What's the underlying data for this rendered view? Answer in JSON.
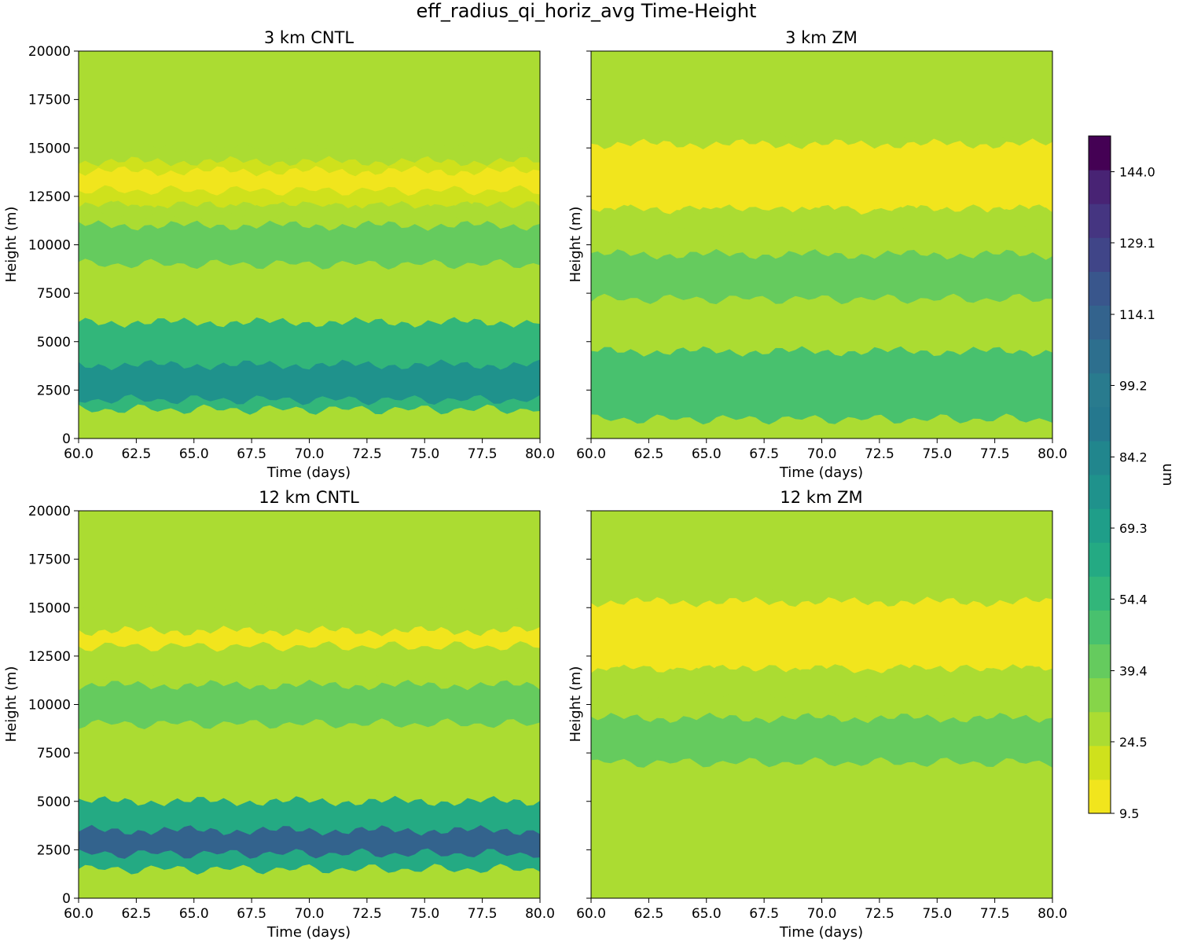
{
  "figure": {
    "title": "eff_radius_qi_horiz_avg Time-Height"
  },
  "colorbar": {
    "label": "um",
    "ticks": [
      "9.5",
      "24.5",
      "39.4",
      "54.4",
      "69.3",
      "84.2",
      "99.2",
      "114.1",
      "129.1",
      "144.0"
    ],
    "range": [
      9.5,
      151.5
    ],
    "levels": 19,
    "colors": [
      "#f1e51d",
      "#cfe11c",
      "#abdc32",
      "#86d549",
      "#65cb5e",
      "#48c16e",
      "#32b67a",
      "#24aa83",
      "#1f9e89",
      "#1f928c",
      "#21868d",
      "#25788e",
      "#297b8e",
      "#2d6f8e",
      "#33638d",
      "#39568c",
      "#404588",
      "#453581",
      "#482374",
      "#440154"
    ]
  },
  "chart_data": [
    {
      "type": "heatmap",
      "title": "3 km CNTL",
      "xlabel": "Time (days)",
      "ylabel": "Height (m)",
      "xlim": [
        60,
        80
      ],
      "ylim": [
        0,
        20000
      ],
      "xticks": [
        "60.0",
        "62.5",
        "65.0",
        "67.5",
        "70.0",
        "72.5",
        "75.0",
        "77.5",
        "80.0"
      ],
      "yticks": [
        "0",
        "2500",
        "5000",
        "7500",
        "10000",
        "12500",
        "15000",
        "17500",
        "20000"
      ],
      "background_um": 30,
      "bands": [
        {
          "y": [
            14300,
            15000
          ],
          "um": 26
        },
        {
          "y": [
            12000,
            14300
          ],
          "um": 22
        },
        {
          "y": [
            12800,
            13800
          ],
          "um": 15
        },
        {
          "y": [
            11500,
            12000
          ],
          "um": 26
        },
        {
          "y": [
            9000,
            11000
          ],
          "um": 40
        },
        {
          "y": [
            1500,
            6000
          ],
          "um": 55
        },
        {
          "y": [
            2000,
            3800
          ],
          "um": 75
        }
      ]
    },
    {
      "type": "heatmap",
      "title": "3 km ZM",
      "xlabel": "Time (days)",
      "ylabel": "Height (m)",
      "xlim": [
        60,
        80
      ],
      "ylim": [
        0,
        20000
      ],
      "xticks": [
        "60.0",
        "62.5",
        "65.0",
        "67.5",
        "70.0",
        "72.5",
        "75.0",
        "77.5",
        "80.0"
      ],
      "yticks": [
        "0",
        "2500",
        "5000",
        "7500",
        "10000",
        "12500",
        "15000",
        "17500",
        "20000"
      ],
      "background_um": 30,
      "bands": [
        {
          "y": [
            14800,
            15700
          ],
          "um": 26
        },
        {
          "y": [
            11800,
            15200
          ],
          "um": 13
        },
        {
          "y": [
            10700,
            11800
          ],
          "um": 26
        },
        {
          "y": [
            7200,
            9500
          ],
          "um": 40
        },
        {
          "y": [
            1000,
            4500
          ],
          "um": 50
        }
      ]
    },
    {
      "type": "heatmap",
      "title": "12 km CNTL",
      "xlabel": "Time (days)",
      "ylabel": "Height (m)",
      "xlim": [
        60,
        80
      ],
      "ylim": [
        0,
        20000
      ],
      "xticks": [
        "60.0",
        "62.5",
        "65.0",
        "67.5",
        "70.0",
        "72.5",
        "75.0",
        "77.5",
        "80.0"
      ],
      "yticks": [
        "0",
        "2500",
        "5000",
        "7500",
        "10000",
        "12500",
        "15000",
        "17500",
        "20000"
      ],
      "background_um": 30,
      "bands": [
        {
          "y": [
            11500,
            15000
          ],
          "um": 26
        },
        {
          "y": [
            13000,
            13800
          ],
          "um": 15
        },
        {
          "y": [
            9000,
            11000
          ],
          "um": 40
        },
        {
          "y": [
            1500,
            5000
          ],
          "um": 60
        },
        {
          "y": [
            2300,
            3500
          ],
          "um": 110
        }
      ]
    },
    {
      "type": "heatmap",
      "title": "12 km ZM",
      "xlabel": "Time (days)",
      "ylabel": "Height (m)",
      "xlim": [
        60,
        80
      ],
      "ylim": [
        0,
        20000
      ],
      "xticks": [
        "60.0",
        "62.5",
        "65.0",
        "67.5",
        "70.0",
        "72.5",
        "75.0",
        "77.5",
        "80.0"
      ],
      "yticks": [
        "0",
        "2500",
        "5000",
        "7500",
        "10000",
        "12500",
        "15000",
        "17500",
        "20000"
      ],
      "background_um": 30,
      "bands": [
        {
          "y": [
            14800,
            15800
          ],
          "um": 26
        },
        {
          "y": [
            11800,
            15300
          ],
          "um": 13
        },
        {
          "y": [
            10500,
            11800
          ],
          "um": 26
        },
        {
          "y": [
            7000,
            9300
          ],
          "um": 40
        }
      ]
    }
  ]
}
